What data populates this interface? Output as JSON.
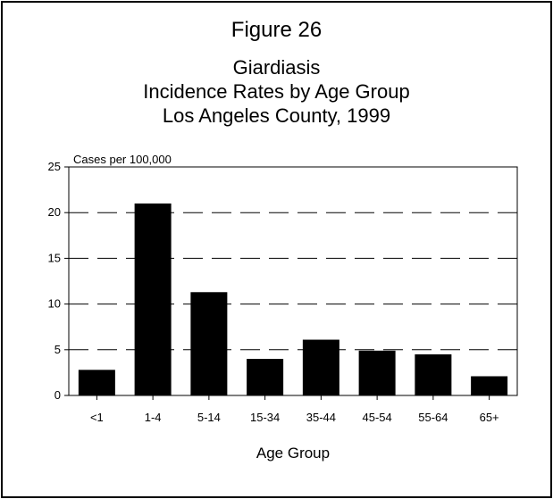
{
  "figure_label": "Figure 26",
  "title_lines": [
    "Giardiasis",
    "Incidence Rates by Age Group",
    "Los Angeles County, 1999"
  ],
  "colors": {
    "bar": "#000000",
    "grid": "#000000",
    "background": "#ffffff"
  },
  "chart_data": {
    "type": "bar",
    "title": "Giardiasis Incidence Rates by Age Group Los Angeles County, 1999",
    "xlabel": "Age Group",
    "ylabel": "Cases per 100,000",
    "categories": [
      "<1",
      "1-4",
      "5-14",
      "15-34",
      "35-44",
      "45-54",
      "55-64",
      "65+"
    ],
    "values": [
      2.8,
      21.0,
      11.3,
      4.0,
      6.1,
      4.9,
      4.5,
      2.1
    ],
    "ylim": [
      0,
      25
    ],
    "yticks": [
      0,
      5,
      10,
      15,
      20,
      25
    ],
    "grid": true,
    "grid_style": "dashed",
    "legend": "none"
  }
}
